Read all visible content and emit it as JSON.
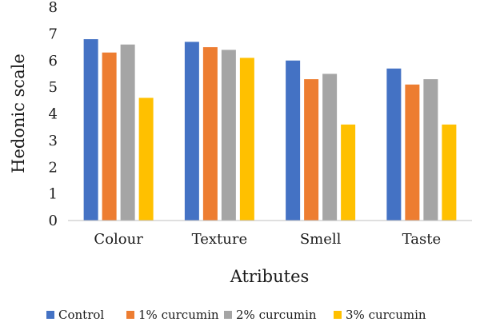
{
  "chart_data": {
    "type": "bar",
    "categories": [
      "Colour",
      "Texture",
      "Smell",
      "Taste"
    ],
    "series": [
      {
        "name": "Control",
        "color": "#4472C4",
        "values": [
          6.8,
          6.7,
          6.0,
          5.7
        ]
      },
      {
        "name": "1% curcumin",
        "color": "#ED7D31",
        "values": [
          6.3,
          6.5,
          5.3,
          5.1
        ]
      },
      {
        "name": "2% curcumin",
        "color": "#A5A5A5",
        "values": [
          6.6,
          6.4,
          5.5,
          5.3
        ]
      },
      {
        "name": "3% curcumin",
        "color": "#FFC000",
        "values": [
          4.6,
          6.1,
          3.6,
          3.6
        ]
      }
    ],
    "title": "",
    "xlabel": "Atributes",
    "ylabel": "Hedonic scale",
    "ylim": [
      0,
      8
    ],
    "yticks": [
      0,
      1,
      2,
      3,
      4,
      5,
      6,
      7,
      8
    ],
    "grid": false,
    "legend_position": "bottom"
  }
}
